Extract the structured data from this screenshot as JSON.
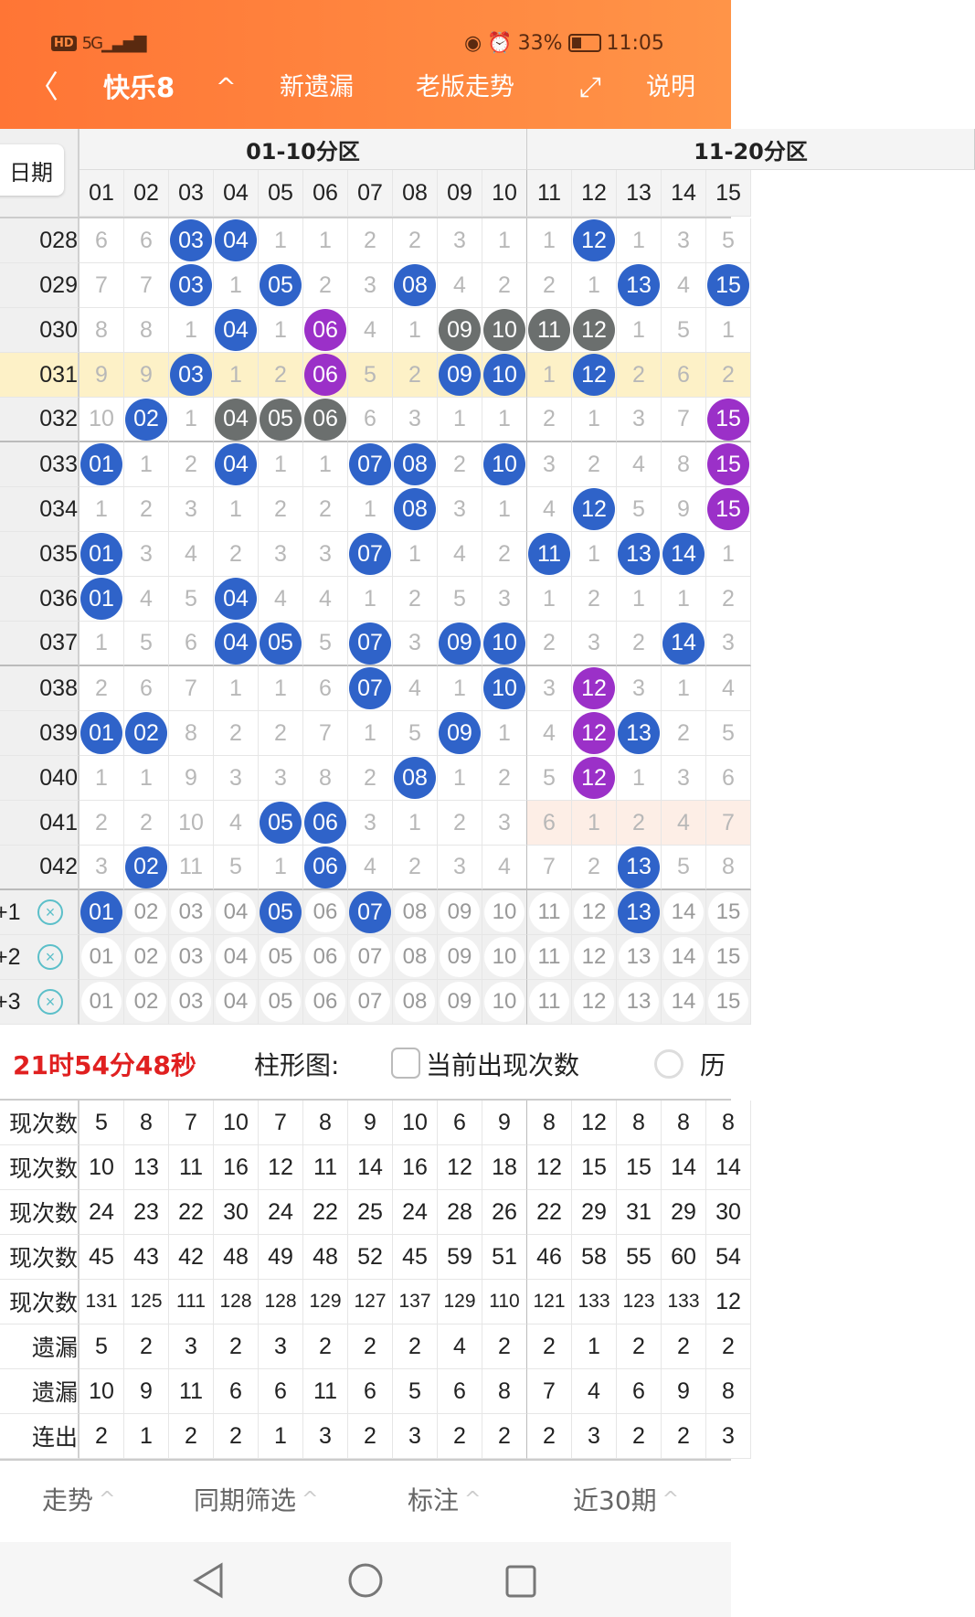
{
  "status_bar": {
    "left": "HD 5G",
    "battery": "33%",
    "time": "11:05"
  },
  "header": {
    "back_icon": "chevron-left-icon",
    "title": "快乐8",
    "title_toggle_icon": "chevron-up-icon",
    "new_missing": "新遗漏",
    "old_trend": "老版走势",
    "fullscreen_icon": "expand-icon",
    "help": "说明"
  },
  "table": {
    "date_button": "日期",
    "zones": [
      "01-10分区",
      "11-20分区"
    ],
    "columns": [
      "01",
      "02",
      "03",
      "04",
      "05",
      "06",
      "07",
      "08",
      "09",
      "10",
      "11",
      "12",
      "13",
      "14",
      "15"
    ],
    "highlight_row": "031",
    "rows": [
      {
        "issue": "028",
        "cells": [
          "6",
          "6",
          [
            "03",
            "b"
          ],
          [
            "04",
            "b"
          ],
          "1",
          "1",
          "2",
          "2",
          "3",
          "1",
          "1",
          [
            "12",
            "b"
          ],
          "1",
          "3",
          "5"
        ]
      },
      {
        "issue": "029",
        "cells": [
          "7",
          "7",
          [
            "03",
            "b"
          ],
          "1",
          [
            "05",
            "b"
          ],
          "2",
          "3",
          [
            "08",
            "b"
          ],
          "4",
          "2",
          "2",
          "1",
          [
            "13",
            "b"
          ],
          "4",
          [
            "15",
            "b"
          ]
        ]
      },
      {
        "issue": "030",
        "cells": [
          "8",
          "8",
          "1",
          [
            "04",
            "b"
          ],
          "1",
          [
            "06",
            "p"
          ],
          "4",
          "1",
          [
            "09",
            "g"
          ],
          [
            "10",
            "g"
          ],
          [
            "11",
            "g"
          ],
          [
            "12",
            "g"
          ],
          "1",
          "5",
          "1"
        ]
      },
      {
        "issue": "031",
        "cells": [
          "9",
          "9",
          [
            "03",
            "b"
          ],
          "1",
          "2",
          [
            "06",
            "p"
          ],
          "5",
          "2",
          [
            "09",
            "b"
          ],
          [
            "10",
            "b"
          ],
          "1",
          [
            "12",
            "b"
          ],
          "2",
          "6",
          "2"
        ]
      },
      {
        "issue": "032",
        "cells": [
          "10",
          [
            "02",
            "b"
          ],
          "1",
          [
            "04",
            "g"
          ],
          [
            "05",
            "g"
          ],
          [
            "06",
            "g"
          ],
          "6",
          "3",
          "1",
          "1",
          "2",
          "1",
          "3",
          "7",
          [
            "15",
            "p"
          ]
        ]
      },
      {
        "issue": "033",
        "cells": [
          [
            "01",
            "b"
          ],
          "1",
          "2",
          [
            "04",
            "b"
          ],
          "1",
          "1",
          [
            "07",
            "b"
          ],
          [
            "08",
            "b"
          ],
          "2",
          [
            "10",
            "b"
          ],
          "3",
          "2",
          "4",
          "8",
          [
            "15",
            "p"
          ]
        ]
      },
      {
        "issue": "034",
        "cells": [
          "1",
          "2",
          "3",
          "1",
          "2",
          "2",
          "1",
          [
            "08",
            "b"
          ],
          "3",
          "1",
          "4",
          [
            "12",
            "b"
          ],
          "5",
          "9",
          [
            "15",
            "p"
          ]
        ]
      },
      {
        "issue": "035",
        "cells": [
          [
            "01",
            "b"
          ],
          "3",
          "4",
          "2",
          "3",
          "3",
          [
            "07",
            "b"
          ],
          "1",
          "4",
          "2",
          [
            "11",
            "b"
          ],
          "1",
          [
            "13",
            "b"
          ],
          [
            "14",
            "b"
          ],
          "1"
        ]
      },
      {
        "issue": "036",
        "cells": [
          [
            "01",
            "b"
          ],
          "4",
          "5",
          [
            "04",
            "b"
          ],
          "4",
          "4",
          "1",
          "2",
          "5",
          "3",
          "1",
          "2",
          "1",
          "1",
          "2"
        ]
      },
      {
        "issue": "037",
        "cells": [
          "1",
          "5",
          "6",
          [
            "04",
            "b"
          ],
          [
            "05",
            "b"
          ],
          "5",
          [
            "07",
            "b"
          ],
          "3",
          [
            "09",
            "b"
          ],
          [
            "10",
            "b"
          ],
          "2",
          "3",
          "2",
          [
            "14",
            "b"
          ],
          "3"
        ]
      },
      {
        "issue": "038",
        "cells": [
          "2",
          "6",
          "7",
          "1",
          "1",
          "6",
          [
            "07",
            "b"
          ],
          "4",
          "1",
          [
            "10",
            "b"
          ],
          "3",
          [
            "12",
            "p"
          ],
          "3",
          "1",
          "4"
        ]
      },
      {
        "issue": "039",
        "cells": [
          [
            "01",
            "b"
          ],
          [
            "02",
            "b"
          ],
          "8",
          "2",
          "2",
          "7",
          "1",
          "5",
          [
            "09",
            "b"
          ],
          "1",
          "4",
          [
            "12",
            "p"
          ],
          [
            "13",
            "b"
          ],
          "2",
          "5"
        ]
      },
      {
        "issue": "040",
        "cells": [
          "1",
          "1",
          "9",
          "3",
          "3",
          "8",
          "2",
          [
            "08",
            "b"
          ],
          "1",
          "2",
          "5",
          [
            "12",
            "p"
          ],
          "1",
          "3",
          "6"
        ]
      },
      {
        "issue": "041",
        "cells": [
          "2",
          "2",
          "10",
          "4",
          [
            "05",
            "b"
          ],
          [
            "06",
            "b"
          ],
          "3",
          "1",
          "2",
          "3",
          "6",
          "1",
          "2",
          "4",
          "7"
        ],
        "pink_from": 10
      },
      {
        "issue": "042",
        "cells": [
          "3",
          [
            "02",
            "b"
          ],
          "11",
          "5",
          "1",
          [
            "06",
            "b"
          ],
          "4",
          "2",
          "3",
          "4",
          "7",
          "2",
          [
            "13",
            "b"
          ],
          "5",
          "8"
        ]
      }
    ],
    "predictions": [
      {
        "label": "+1",
        "clear_icon": "circle-x-icon",
        "selected": [
          "01",
          "05",
          "07",
          "13"
        ]
      },
      {
        "label": "+2",
        "clear_icon": "circle-x-icon",
        "selected": []
      },
      {
        "label": "+3",
        "clear_icon": "circle-x-icon",
        "selected": []
      }
    ]
  },
  "toolbar": {
    "timer": "21时54分48秒",
    "chart_label": "柱形图:",
    "checkbox_label": "当前出现次数",
    "checkbox_checked": false,
    "radio_label": "历"
  },
  "stats": [
    {
      "label": "现次数",
      "values": [
        "5",
        "8",
        "7",
        "10",
        "7",
        "8",
        "9",
        "10",
        "6",
        "9",
        "8",
        "12",
        "8",
        "8",
        "8"
      ]
    },
    {
      "label": "现次数",
      "values": [
        "10",
        "13",
        "11",
        "16",
        "12",
        "11",
        "14",
        "16",
        "12",
        "18",
        "12",
        "15",
        "15",
        "14",
        "14"
      ]
    },
    {
      "label": "现次数",
      "values": [
        "24",
        "23",
        "22",
        "30",
        "24",
        "22",
        "25",
        "24",
        "28",
        "26",
        "22",
        "29",
        "31",
        "29",
        "30"
      ]
    },
    {
      "label": "现次数",
      "values": [
        "45",
        "43",
        "42",
        "48",
        "49",
        "48",
        "52",
        "45",
        "59",
        "51",
        "46",
        "58",
        "55",
        "60",
        "54"
      ]
    },
    {
      "label": "现次数",
      "values": [
        "131",
        "125",
        "111",
        "128",
        "128",
        "129",
        "127",
        "137",
        "129",
        "110",
        "121",
        "133",
        "123",
        "133",
        "12"
      ]
    },
    {
      "label": "遗漏",
      "values": [
        "5",
        "2",
        "3",
        "2",
        "3",
        "2",
        "2",
        "2",
        "4",
        "2",
        "2",
        "1",
        "2",
        "2",
        "2"
      ]
    },
    {
      "label": "遗漏",
      "values": [
        "10",
        "9",
        "11",
        "6",
        "6",
        "11",
        "6",
        "5",
        "6",
        "8",
        "7",
        "4",
        "6",
        "9",
        "8"
      ]
    },
    {
      "label": "连出",
      "values": [
        "2",
        "1",
        "2",
        "2",
        "1",
        "3",
        "2",
        "3",
        "2",
        "2",
        "2",
        "3",
        "2",
        "2",
        "3"
      ]
    }
  ],
  "bottom_tabs": [
    "走势",
    "同期筛选",
    "标注",
    "近30期"
  ],
  "system_nav": [
    "back-triangle-icon",
    "home-circle-icon",
    "recents-square-icon"
  ],
  "colors": {
    "header": "#ff7f3c",
    "ball_blue": "#2f63c9",
    "ball_purple": "#9b30c8",
    "ball_gray": "#6b6f6e",
    "timer_red": "#e02020",
    "highlight": "#fdf1c7",
    "clear_icon": "#5bbfc9"
  }
}
